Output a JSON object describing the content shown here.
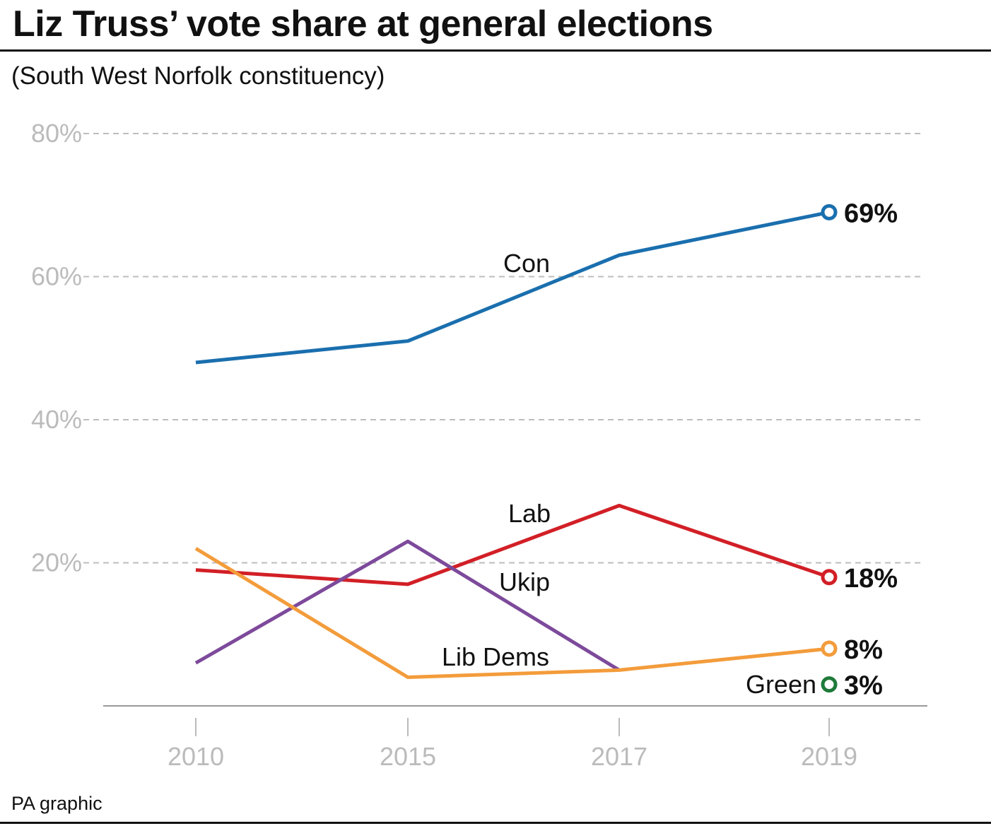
{
  "title": "Liz Truss’ vote share at general elections",
  "subtitle": "(South West Norfolk constituency)",
  "source": "PA graphic",
  "chart_data": {
    "type": "line",
    "x": [
      "2010",
      "2015",
      "2017",
      "2019"
    ],
    "ylim": [
      0,
      80
    ],
    "yticks": [
      20,
      40,
      60,
      80
    ],
    "ytick_labels": [
      "20%",
      "40%",
      "60%",
      "80%"
    ],
    "grid": true,
    "series": [
      {
        "name": "Con",
        "color": "#1a6fae",
        "values": [
          48,
          51,
          63,
          69
        ],
        "end_label": "69%"
      },
      {
        "name": "Lab",
        "color": "#d21f26",
        "values": [
          19,
          17,
          28,
          18
        ],
        "end_label": "18%"
      },
      {
        "name": "Ukip",
        "color": "#7d4a9b",
        "values": [
          6,
          23,
          5,
          null
        ]
      },
      {
        "name": "Lib Dems",
        "color": "#f39c3b",
        "values": [
          22,
          4,
          5,
          8
        ],
        "end_label": "8%"
      },
      {
        "name": "Green",
        "color": "#1f7a3a",
        "values": [
          null,
          null,
          null,
          3
        ],
        "end_label": "3%"
      }
    ]
  }
}
